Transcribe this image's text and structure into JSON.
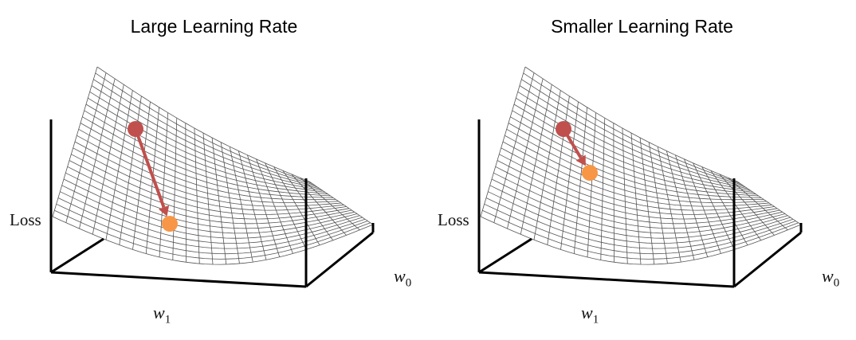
{
  "panels": [
    {
      "title": "Large Learning Rate",
      "y_axis_label": "Loss",
      "x_axis_label": {
        "var": "w",
        "sub": "1"
      },
      "z_axis_label": {
        "var": "w",
        "sub": "0"
      },
      "step": "large",
      "start_color": "#c0504d",
      "end_color": "#f79646",
      "arrow_color": "#c0504d"
    },
    {
      "title": "Smaller Learning Rate",
      "y_axis_label": "Loss",
      "x_axis_label": {
        "var": "w",
        "sub": "1"
      },
      "z_axis_label": {
        "var": "w",
        "sub": "0"
      },
      "step": "small",
      "start_color": "#c0504d",
      "end_color": "#f79646",
      "arrow_color": "#c0504d"
    }
  ]
}
